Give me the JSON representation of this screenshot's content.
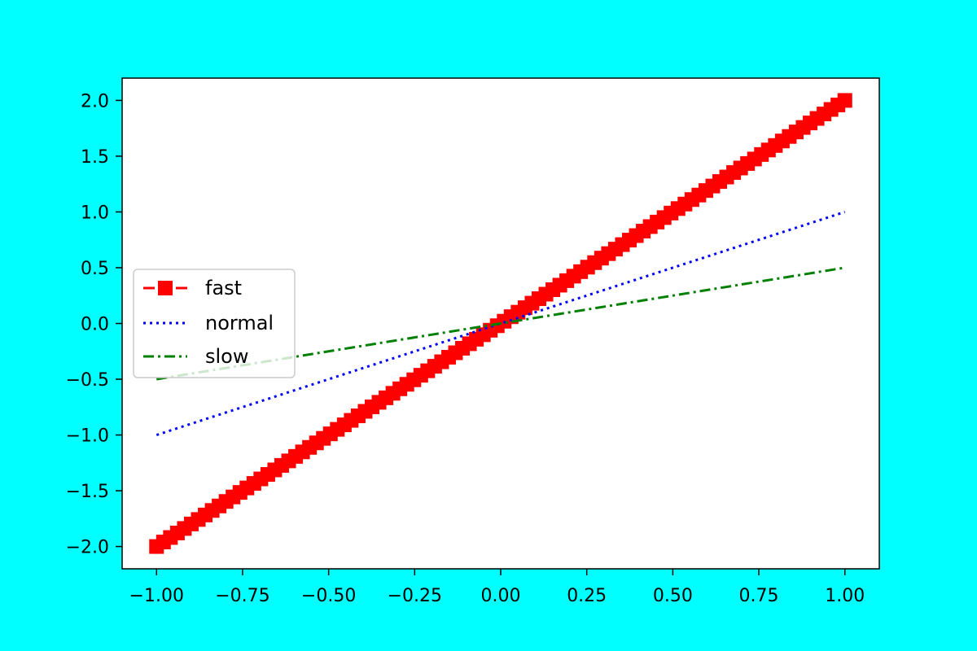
{
  "colors": {
    "background": "#00ffff",
    "plot_area": "#ffffff",
    "legend_border": "#cccccc"
  },
  "chart_data": {
    "type": "line",
    "title": "",
    "xlabel": "",
    "ylabel": "",
    "xlim": [
      -1.1,
      1.1
    ],
    "ylim": [
      -2.2,
      2.2
    ],
    "grid": false,
    "legend_position": "center-left",
    "x_ticks": [
      -1.0,
      -0.75,
      -0.5,
      -0.25,
      0.0,
      0.25,
      0.5,
      0.75,
      1.0
    ],
    "x_tick_labels": [
      "−1.00",
      "−0.75",
      "−0.50",
      "−0.25",
      "0.00",
      "0.25",
      "0.50",
      "0.75",
      "1.00"
    ],
    "y_ticks": [
      -2.0,
      -1.5,
      -1.0,
      -0.5,
      0.0,
      0.5,
      1.0,
      1.5,
      2.0
    ],
    "y_tick_labels": [
      "−2.0",
      "−1.5",
      "−1.0",
      "−0.5",
      "0.0",
      "0.5",
      "1.0",
      "1.5",
      "2.0"
    ],
    "x_range": [
      -1.0,
      1.0
    ],
    "series": [
      {
        "name": "fast",
        "slope": 2.0,
        "color": "#ff0000",
        "line_style": "dashed",
        "marker": "square",
        "points": 100
      },
      {
        "name": "normal",
        "slope": 1.0,
        "color": "#0000ff",
        "line_style": "dotted",
        "marker": "none"
      },
      {
        "name": "slow",
        "slope": 0.5,
        "color": "#008000",
        "line_style": "dash-dot",
        "marker": "none"
      }
    ]
  }
}
